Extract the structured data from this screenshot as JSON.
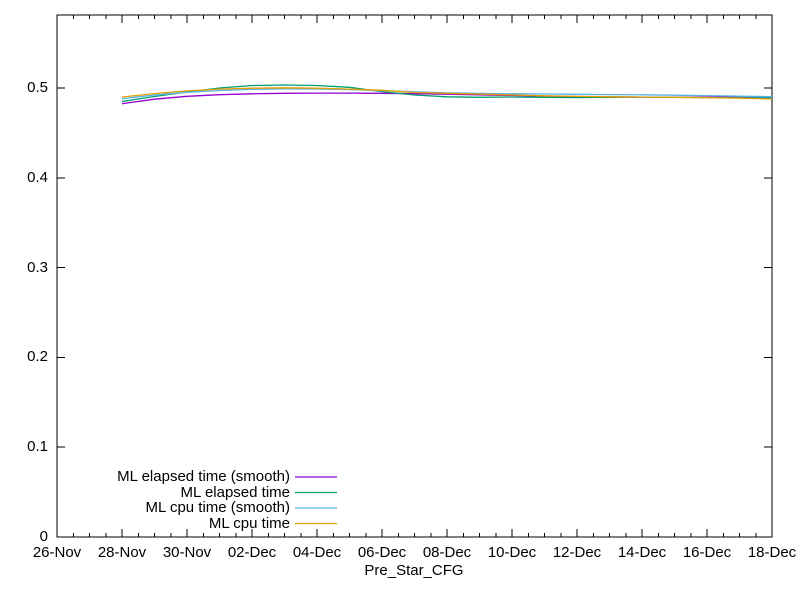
{
  "chart_data": {
    "type": "line",
    "title": "",
    "xlabel": "Pre_Star_CFG",
    "ylabel": "",
    "grid": false,
    "legend_position": "bottom-left-inside",
    "x_axis": {
      "tick_labels": [
        "26-Nov",
        "28-Nov",
        "30-Nov",
        "02-Dec",
        "04-Dec",
        "06-Dec",
        "08-Dec",
        "10-Dec",
        "12-Dec",
        "14-Dec",
        "16-Dec",
        "18-Dec"
      ],
      "tick_days": [
        0,
        2,
        4,
        6,
        8,
        10,
        12,
        14,
        16,
        18,
        20,
        22
      ],
      "minor_tick_step_days": 0.5,
      "range_days": [
        0,
        22
      ]
    },
    "y_axis": {
      "tick_labels": [
        "0",
        "0.1",
        "0.2",
        "0.3",
        "0.4",
        "0.5"
      ],
      "tick_values": [
        0,
        0.1,
        0.2,
        0.3,
        0.4,
        0.5
      ],
      "range": [
        0,
        0.5813
      ]
    },
    "x_days": [
      2,
      3,
      4,
      5,
      6,
      7,
      8,
      9,
      10,
      11,
      12,
      13,
      14,
      15,
      16,
      17,
      18,
      19,
      20,
      21,
      22
    ],
    "series": [
      {
        "name": "ML elapsed time (smooth)",
        "color": "#9400d3",
        "values": [
          0.4825,
          0.4875,
          0.4908,
          0.4926,
          0.4936,
          0.4941,
          0.4943,
          0.4943,
          0.4941,
          0.4937,
          0.4931,
          0.4924,
          0.4916,
          0.491,
          0.4905,
          0.4901,
          0.4899,
          0.4898,
          0.4898,
          0.49,
          0.4901
        ]
      },
      {
        "name": "ML elapsed time",
        "color": "#009e73",
        "values": [
          0.485,
          0.4905,
          0.4955,
          0.5,
          0.5028,
          0.5033,
          0.5028,
          0.5008,
          0.496,
          0.4922,
          0.4902,
          0.4896,
          0.49,
          0.4896,
          0.4893,
          0.4896,
          0.4899,
          0.4896,
          0.4893,
          0.4891,
          0.4889
        ]
      },
      {
        "name": "ML cpu time (smooth)",
        "color": "#56b4e9",
        "values": [
          0.488,
          0.4922,
          0.4952,
          0.4972,
          0.4984,
          0.499,
          0.4989,
          0.4982,
          0.4971,
          0.4958,
          0.4947,
          0.494,
          0.4936,
          0.4933,
          0.493,
          0.4927,
          0.4924,
          0.492,
          0.4915,
          0.4909,
          0.4903
        ]
      },
      {
        "name": "ML cpu time",
        "color": "#e69f00",
        "values": [
          0.49,
          0.4938,
          0.4968,
          0.4988,
          0.4998,
          0.5002,
          0.4998,
          0.4988,
          0.4974,
          0.495,
          0.4941,
          0.4932,
          0.4922,
          0.4913,
          0.4906,
          0.4902,
          0.4899,
          0.4896,
          0.4892,
          0.4886,
          0.4878
        ]
      }
    ]
  },
  "colors": {
    "background": "#ffffff",
    "axis": "#000000",
    "text": "#000000"
  }
}
